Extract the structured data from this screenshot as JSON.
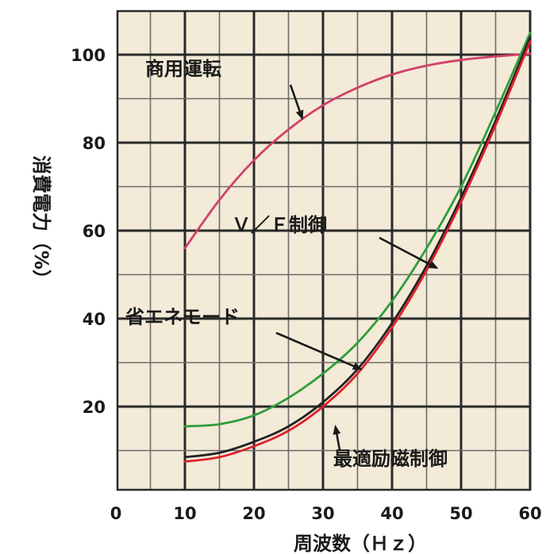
{
  "chart_data": {
    "type": "line",
    "title": "",
    "xlabel": "周波数（Ｈｚ）",
    "ylabel": "消費電力（%）",
    "xlim": [
      0,
      60
    ],
    "ylim": [
      0,
      108
    ],
    "x_ticks": [
      "0",
      "10",
      "20",
      "30",
      "40",
      "50",
      "60"
    ],
    "y_ticks": [
      "20",
      "40",
      "60",
      "80",
      "100"
    ],
    "grid": true,
    "series": [
      {
        "name": "商用運転",
        "color": "#d2406a",
        "points": [
          [
            10,
            56
          ],
          [
            15,
            67
          ],
          [
            20,
            76
          ],
          [
            25,
            83
          ],
          [
            30,
            88.5
          ],
          [
            35,
            92.5
          ],
          [
            40,
            95.5
          ],
          [
            45,
            97.5
          ],
          [
            50,
            98.8
          ],
          [
            55,
            99.6
          ],
          [
            60,
            100.2
          ]
        ]
      },
      {
        "name": "Ｖ／Ｆ制御",
        "color": "#2e9e3a",
        "points": [
          [
            10,
            15.5
          ],
          [
            15,
            16
          ],
          [
            20,
            18
          ],
          [
            25,
            22
          ],
          [
            30,
            27.5
          ],
          [
            35,
            34.5
          ],
          [
            40,
            44
          ],
          [
            45,
            56
          ],
          [
            50,
            70
          ],
          [
            55,
            87
          ],
          [
            60,
            105
          ]
        ]
      },
      {
        "name": "省エネモード",
        "color": "#222222",
        "points": [
          [
            10,
            8.5
          ],
          [
            15,
            9.5
          ],
          [
            20,
            12
          ],
          [
            25,
            15.5
          ],
          [
            30,
            21
          ],
          [
            35,
            28.5
          ],
          [
            40,
            39
          ],
          [
            45,
            52
          ],
          [
            50,
            67.5
          ],
          [
            55,
            85
          ],
          [
            60,
            104
          ]
        ]
      },
      {
        "name": "最適励磁制御",
        "color": "#e0202a",
        "points": [
          [
            10,
            7.5
          ],
          [
            15,
            8.5
          ],
          [
            20,
            11
          ],
          [
            25,
            14.5
          ],
          [
            30,
            20
          ],
          [
            35,
            27.5
          ],
          [
            40,
            38
          ],
          [
            45,
            51
          ],
          [
            50,
            66.5
          ],
          [
            55,
            84
          ],
          [
            60,
            103
          ]
        ]
      }
    ],
    "annotations": [
      {
        "text": "商用運転",
        "series": "商用運転"
      },
      {
        "text": "Ｖ／Ｆ制御",
        "series": "Ｖ／Ｆ制御"
      },
      {
        "text": "省エネモード",
        "series": "省エネモード"
      },
      {
        "text": "最適励磁制御",
        "series": "最適励磁制御"
      }
    ],
    "colors": {
      "plot_background": "#f3ead8",
      "grid_major": "#2a2a2a",
      "grid_minor": "#6b6b6b",
      "arrow": "#1a1a1a"
    }
  }
}
